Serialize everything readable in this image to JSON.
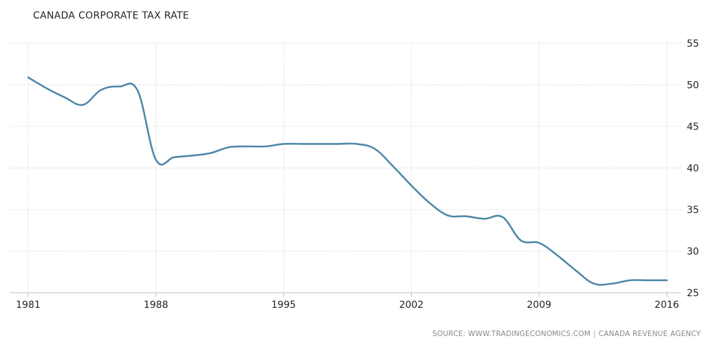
{
  "chart_data": {
    "type": "line",
    "title": "CANADA CORPORATE TAX RATE",
    "xlabel": "",
    "ylabel": "",
    "xlim": [
      1981,
      2016
    ],
    "ylim": [
      25,
      55
    ],
    "x_ticks": [
      "1981",
      "1988",
      "1995",
      "2002",
      "2009",
      "2016"
    ],
    "y_ticks": [
      "25",
      "30",
      "35",
      "40",
      "45",
      "50",
      "55"
    ],
    "grid": true,
    "series_color": "#4f87a8",
    "series": [
      {
        "x": [
          1981,
          1982,
          1983,
          1984,
          1985,
          1986,
          1987,
          1988,
          1989,
          1990,
          1991,
          1992,
          1993,
          1994,
          1995,
          1996,
          1997,
          1998,
          1999,
          2000,
          2001,
          2002,
          2003,
          2004,
          2005,
          2006,
          2007,
          2008,
          2009,
          2010,
          2011,
          2012,
          2013,
          2014,
          2015,
          2016
        ],
        "values": [
          50.9,
          49.6,
          48.5,
          47.6,
          49.4,
          49.8,
          49.3,
          41.0,
          41.3,
          41.5,
          41.8,
          42.5,
          42.6,
          42.6,
          42.9,
          42.9,
          42.9,
          42.9,
          42.9,
          42.3,
          40.2,
          37.9,
          35.8,
          34.3,
          34.2,
          33.9,
          34.1,
          31.3,
          31.0,
          29.5,
          27.7,
          26.1,
          26.1,
          26.5,
          26.5,
          26.5
        ]
      }
    ]
  },
  "footer": {
    "source": "SOURCE: WWW.TRADINGECONOMICS.COM",
    "separator": "|",
    "agency": "CANADA REVENUE AGENCY"
  }
}
